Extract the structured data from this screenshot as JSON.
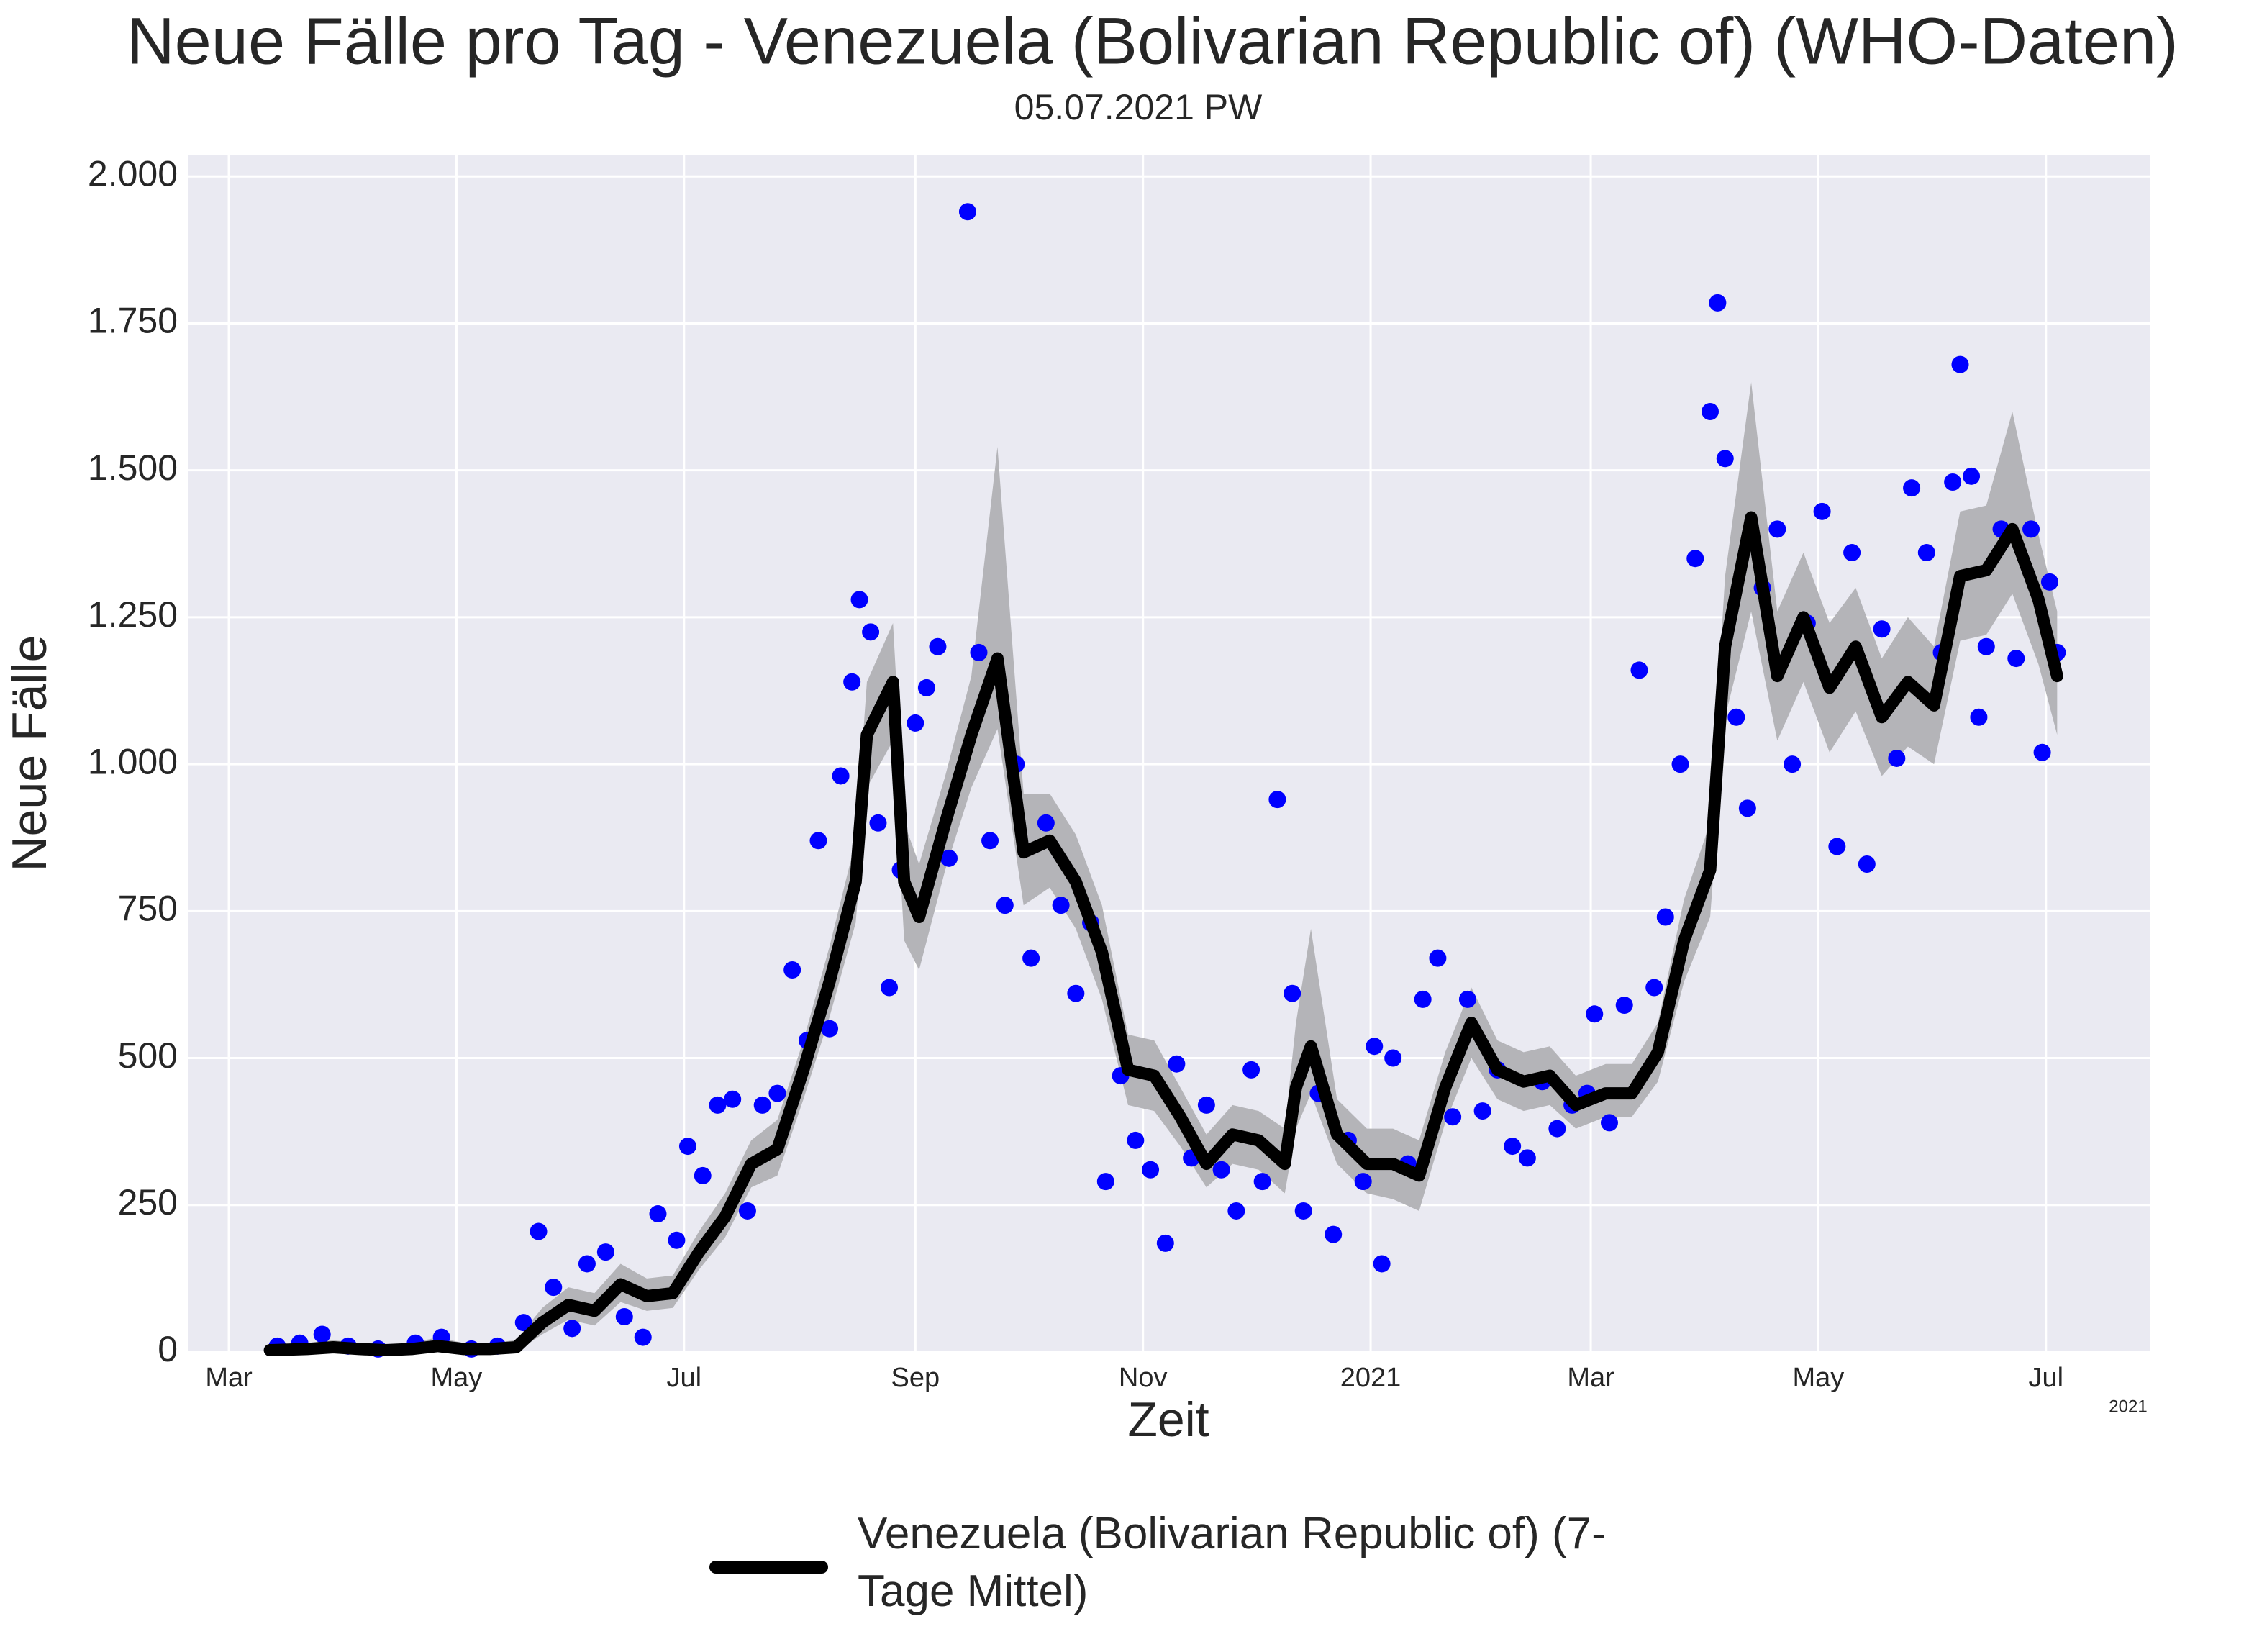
{
  "chart_data": {
    "type": "line",
    "title": "Neue Fälle pro Tag - Venezuela (Bolivarian Republic of) (WHO-Daten)",
    "subtitle": "05.07.2021 PW",
    "x_label": "Zeit",
    "y_label": "Neue Fälle",
    "x_offset_label": "2021",
    "xlim": [
      "2020-02-19",
      "2021-07-29"
    ],
    "xticks": [
      {
        "value": "2020-03-01",
        "label": "Mar"
      },
      {
        "value": "2020-05-01",
        "label": "May"
      },
      {
        "value": "2020-07-01",
        "label": "Jul"
      },
      {
        "value": "2020-09-01",
        "label": "Sep"
      },
      {
        "value": "2020-11-01",
        "label": "Nov"
      },
      {
        "value": "2021-01-01",
        "label": "2021"
      },
      {
        "value": "2021-03-01",
        "label": "Mar"
      },
      {
        "value": "2021-05-01",
        "label": "May"
      },
      {
        "value": "2021-07-01",
        "label": "Jul"
      }
    ],
    "ylim": [
      0,
      2037
    ],
    "yticks": [
      0,
      250,
      500,
      750,
      {
        "value": 1000,
        "label": "1.000"
      },
      {
        "value": 1250,
        "label": "1.250"
      },
      {
        "value": 1500,
        "label": "1.500"
      },
      {
        "value": 1750,
        "label": "1.750"
      },
      {
        "value": 2000,
        "label": "2.000"
      }
    ],
    "grid": true,
    "background": "#eaeaf2",
    "band_color": "#b4b4b8",
    "points": {
      "color": "#0000ff",
      "x": [
        "2020-03-14",
        "2020-03-20",
        "2020-03-26",
        "2020-04-02",
        "2020-04-10",
        "2020-04-20",
        "2020-04-27",
        "2020-05-05",
        "2020-05-12",
        "2020-05-19",
        "2020-05-23",
        "2020-05-27",
        "2020-06-01",
        "2020-06-05",
        "2020-06-10",
        "2020-06-15",
        "2020-06-20",
        "2020-06-24",
        "2020-06-29",
        "2020-07-02",
        "2020-07-06",
        "2020-07-10",
        "2020-07-14",
        "2020-07-18",
        "2020-07-22",
        "2020-07-26",
        "2020-07-30",
        "2020-08-03",
        "2020-08-06",
        "2020-08-09",
        "2020-08-12",
        "2020-08-15",
        "2020-08-17",
        "2020-08-20",
        "2020-08-22",
        "2020-08-25",
        "2020-08-28",
        "2020-09-01",
        "2020-09-04",
        "2020-09-07",
        "2020-09-10",
        "2020-09-15",
        "2020-09-18",
        "2020-09-21",
        "2020-09-25",
        "2020-09-28",
        "2020-10-02",
        "2020-10-06",
        "2020-10-10",
        "2020-10-14",
        "2020-10-18",
        "2020-10-22",
        "2020-10-26",
        "2020-10-30",
        "2020-11-03",
        "2020-11-07",
        "2020-11-10",
        "2020-11-14",
        "2020-11-18",
        "2020-11-22",
        "2020-11-26",
        "2020-11-30",
        "2020-12-03",
        "2020-12-07",
        "2020-12-11",
        "2020-12-14",
        "2020-12-18",
        "2020-12-22",
        "2020-12-26",
        "2020-12-30",
        "2021-01-02",
        "2021-01-04",
        "2021-01-07",
        "2021-01-11",
        "2021-01-15",
        "2021-01-19",
        "2021-01-23",
        "2021-01-27",
        "2021-01-31",
        "2021-02-04",
        "2021-02-08",
        "2021-02-12",
        "2021-02-16",
        "2021-02-20",
        "2021-02-24",
        "2021-02-28",
        "2021-03-02",
        "2021-03-06",
        "2021-03-10",
        "2021-03-14",
        "2021-03-18",
        "2021-03-21",
        "2021-03-25",
        "2021-03-29",
        "2021-04-02",
        "2021-04-04",
        "2021-04-06",
        "2021-04-09",
        "2021-04-12",
        "2021-04-16",
        "2021-04-20",
        "2021-04-24",
        "2021-04-28",
        "2021-05-02",
        "2021-05-06",
        "2021-05-10",
        "2021-05-14",
        "2021-05-18",
        "2021-05-22",
        "2021-05-26",
        "2021-05-30",
        "2021-06-03",
        "2021-06-06",
        "2021-06-08",
        "2021-06-11",
        "2021-06-13",
        "2021-06-15",
        "2021-06-19",
        "2021-06-23",
        "2021-06-27",
        "2021-06-30",
        "2021-07-02",
        "2021-07-04"
      ],
      "values": [
        10,
        15,
        30,
        10,
        5,
        15,
        25,
        5,
        10,
        50,
        205,
        110,
        40,
        150,
        170,
        60,
        25,
        235,
        190,
        350,
        300,
        420,
        430,
        240,
        420,
        440,
        650,
        530,
        870,
        550,
        980,
        1140,
        1280,
        1225,
        900,
        620,
        820,
        1070,
        1130,
        1200,
        840,
        1940,
        1190,
        870,
        760,
        1000,
        670,
        900,
        760,
        610,
        730,
        290,
        470,
        360,
        310,
        185,
        490,
        330,
        420,
        310,
        240,
        480,
        290,
        940,
        610,
        240,
        440,
        200,
        360,
        290,
        520,
        150,
        500,
        320,
        600,
        670,
        400,
        600,
        410,
        480,
        350,
        330,
        460,
        380,
        420,
        440,
        575,
        390,
        590,
        1160,
        620,
        740,
        1000,
        1350,
        1600,
        1785,
        1520,
        1080,
        925,
        1300,
        1400,
        1000,
        1240,
        1430,
        860,
        1360,
        830,
        1230,
        1010,
        1470,
        1360,
        1190,
        1480,
        1680,
        1490,
        1080,
        1200,
        1400,
        1180,
        1400,
        1020,
        1310,
        1190
      ]
    },
    "series": [
      {
        "name": "Venezuela (Bolivarian Republic of) (7-Tage Mittel)",
        "color": "#000000",
        "x": [
          "2020-03-12",
          "2020-03-22",
          "2020-03-29",
          "2020-04-05",
          "2020-04-12",
          "2020-04-19",
          "2020-04-26",
          "2020-05-03",
          "2020-05-10",
          "2020-05-17",
          "2020-05-24",
          "2020-05-31",
          "2020-06-07",
          "2020-06-14",
          "2020-06-21",
          "2020-06-28",
          "2020-07-05",
          "2020-07-12",
          "2020-07-19",
          "2020-07-26",
          "2020-08-02",
          "2020-08-09",
          "2020-08-16",
          "2020-08-19",
          "2020-08-26",
          "2020-08-29",
          "2020-09-02",
          "2020-09-09",
          "2020-09-16",
          "2020-09-23",
          "2020-09-30",
          "2020-10-07",
          "2020-10-14",
          "2020-10-21",
          "2020-10-28",
          "2020-11-04",
          "2020-11-11",
          "2020-11-18",
          "2020-11-25",
          "2020-12-02",
          "2020-12-09",
          "2020-12-12",
          "2020-12-16",
          "2020-12-23",
          "2020-12-31",
          "2021-01-07",
          "2021-01-14",
          "2021-01-21",
          "2021-01-28",
          "2021-02-04",
          "2021-02-11",
          "2021-02-18",
          "2021-02-25",
          "2021-03-05",
          "2021-03-12",
          "2021-03-19",
          "2021-03-26",
          "2021-04-02",
          "2021-04-06",
          "2021-04-13",
          "2021-04-20",
          "2021-04-27",
          "2021-05-04",
          "2021-05-11",
          "2021-05-18",
          "2021-05-25",
          "2021-06-01",
          "2021-06-08",
          "2021-06-15",
          "2021-06-22",
          "2021-06-29",
          "2021-07-04"
        ],
        "values": [
          3,
          5,
          8,
          5,
          3,
          5,
          10,
          5,
          5,
          8,
          50,
          80,
          70,
          115,
          95,
          100,
          170,
          230,
          320,
          345,
          480,
          630,
          800,
          1050,
          1140,
          800,
          740,
          900,
          1050,
          1180,
          850,
          870,
          800,
          680,
          480,
          470,
          400,
          320,
          370,
          360,
          320,
          450,
          520,
          370,
          320,
          320,
          300,
          450,
          560,
          480,
          460,
          470,
          420,
          440,
          440,
          510,
          700,
          820,
          1200,
          1420,
          1150,
          1250,
          1130,
          1200,
          1080,
          1140,
          1100,
          1320,
          1330,
          1400,
          1280,
          1150
        ],
        "band_lower": [
          0,
          0,
          0,
          0,
          0,
          0,
          0,
          0,
          0,
          0,
          30,
          55,
          45,
          85,
          70,
          75,
          140,
          195,
          280,
          300,
          430,
          570,
          730,
          960,
          1040,
          700,
          650,
          820,
          960,
          1060,
          760,
          790,
          720,
          600,
          420,
          410,
          350,
          280,
          320,
          310,
          270,
          380,
          440,
          320,
          270,
          260,
          240,
          390,
          500,
          430,
          410,
          420,
          380,
          400,
          400,
          460,
          630,
          740,
          1080,
          1260,
          1040,
          1140,
          1020,
          1090,
          980,
          1030,
          1000,
          1210,
          1220,
          1290,
          1170,
          1050
        ],
        "band_upper": [
          10,
          15,
          20,
          15,
          10,
          15,
          25,
          15,
          15,
          20,
          75,
          110,
          100,
          150,
          125,
          130,
          205,
          270,
          360,
          395,
          530,
          690,
          870,
          1140,
          1240,
          900,
          830,
          980,
          1150,
          1540,
          950,
          950,
          880,
          760,
          540,
          530,
          450,
          370,
          420,
          410,
          380,
          560,
          720,
          430,
          380,
          380,
          360,
          510,
          620,
          530,
          510,
          520,
          470,
          490,
          490,
          560,
          770,
          900,
          1320,
          1650,
          1260,
          1360,
          1240,
          1300,
          1180,
          1250,
          1200,
          1430,
          1440,
          1600,
          1390,
          1260
        ]
      }
    ],
    "legend": "bottom"
  }
}
